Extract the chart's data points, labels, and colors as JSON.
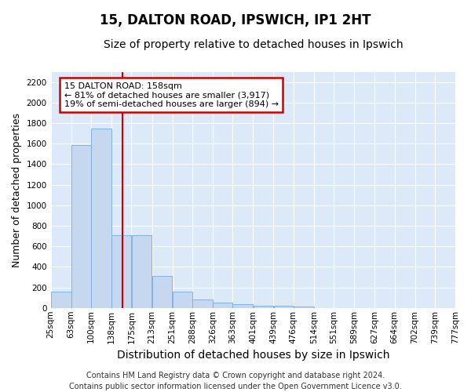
{
  "title_line1": "15, DALTON ROAD, IPSWICH, IP1 2HT",
  "title_line2": "Size of property relative to detached houses in Ipswich",
  "xlabel": "Distribution of detached houses by size in Ipswich",
  "ylabel": "Number of detached properties",
  "bar_color": "#c5d8f0",
  "bar_edge_color": "#7aaadb",
  "vline_color": "#cc0000",
  "vline_x": 158,
  "annotation_title": "15 DALTON ROAD: 158sqm",
  "annotation_line1": "← 81% of detached houses are smaller (3,917)",
  "annotation_line2": "19% of semi-detached houses are larger (894) →",
  "annotation_box_color": "#cc0000",
  "annotation_bg": "#ffffff",
  "footer_line1": "Contains HM Land Registry data © Crown copyright and database right 2024.",
  "footer_line2": "Contains public sector information licensed under the Open Government Licence v3.0.",
  "bin_edges": [
    25,
    63,
    100,
    138,
    175,
    213,
    251,
    288,
    326,
    363,
    401,
    439,
    476,
    514,
    551,
    589,
    627,
    664,
    702,
    739,
    777
  ],
  "bin_labels": [
    "25sqm",
    "63sqm",
    "100sqm",
    "138sqm",
    "175sqm",
    "213sqm",
    "251sqm",
    "288sqm",
    "326sqm",
    "363sqm",
    "401sqm",
    "439sqm",
    "476sqm",
    "514sqm",
    "551sqm",
    "589sqm",
    "627sqm",
    "664sqm",
    "702sqm",
    "739sqm",
    "777sqm"
  ],
  "values": [
    155,
    1590,
    1750,
    710,
    710,
    315,
    160,
    85,
    52,
    35,
    20,
    20,
    17,
    0,
    0,
    0,
    0,
    0,
    0,
    0
  ],
  "ylim": [
    0,
    2300
  ],
  "yticks": [
    0,
    200,
    400,
    600,
    800,
    1000,
    1200,
    1400,
    1600,
    1800,
    2000,
    2200
  ],
  "fig_bg": "#ffffff",
  "plot_bg": "#dce9f8",
  "grid_color": "#ffffff",
  "title_fontsize": 12,
  "subtitle_fontsize": 10,
  "ylabel_fontsize": 9,
  "xlabel_fontsize": 10,
  "tick_fontsize": 7.5,
  "footer_fontsize": 7,
  "ann_fontsize": 8
}
